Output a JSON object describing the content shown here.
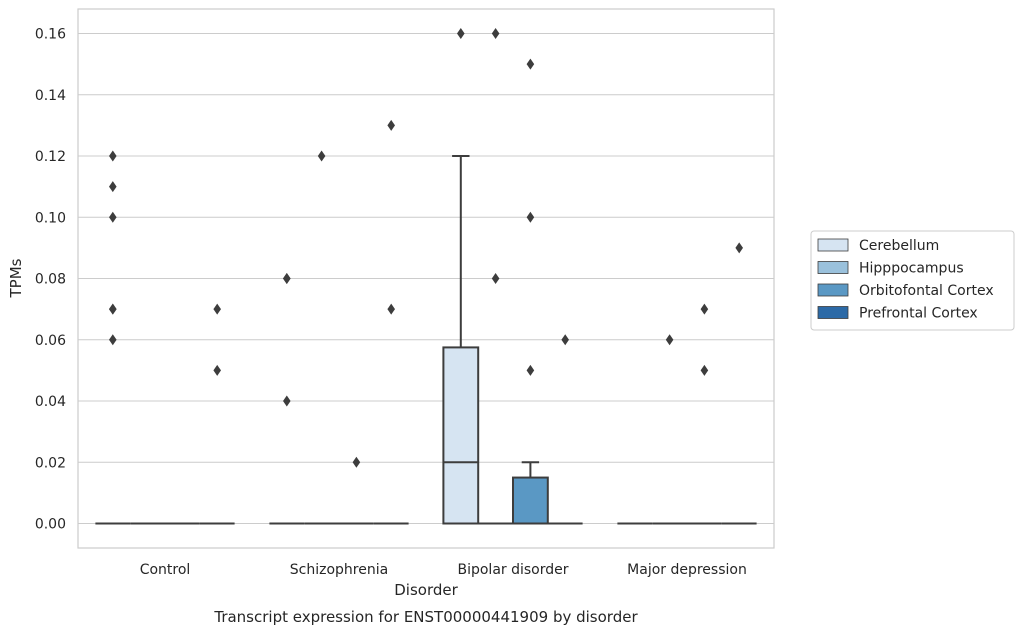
{
  "chart_data": {
    "type": "box",
    "xlabel": "Disorder",
    "ylabel": "TPMs",
    "caption": "Transcript expression for ENST00000441909 by disorder",
    "ylim": [
      -0.008,
      0.168
    ],
    "yticks": [
      "0.00",
      "0.02",
      "0.04",
      "0.06",
      "0.08",
      "0.10",
      "0.12",
      "0.14",
      "0.16"
    ],
    "ytick_values": [
      0,
      0.02,
      0.04,
      0.06,
      0.08,
      0.1,
      0.12,
      0.14,
      0.16
    ],
    "grid": "horizontal",
    "legend_position": "right",
    "categories": [
      "Control",
      "Schizophrenia",
      "Bipolar disorder",
      "Major depression"
    ],
    "series": [
      {
        "name": "Cerebellum",
        "color": "#d6e4f2",
        "boxes": [
          {
            "q1": 0,
            "median": 0,
            "q3": 0,
            "whisker_low": 0,
            "whisker_high": 0,
            "outliers": [
              0.06,
              0.07,
              0.07,
              0.1,
              0.11,
              0.12
            ]
          },
          {
            "q1": 0,
            "median": 0,
            "q3": 0,
            "whisker_low": 0,
            "whisker_high": 0,
            "outliers": [
              0.04,
              0.08,
              0.08
            ]
          },
          {
            "q1": 0,
            "median": 0.02,
            "q3": 0.0575,
            "whisker_low": 0,
            "whisker_high": 0.12,
            "outliers": [
              0.16
            ]
          },
          {
            "q1": 0,
            "median": 0,
            "q3": 0,
            "whisker_low": 0,
            "whisker_high": 0,
            "outliers": []
          }
        ]
      },
      {
        "name": "Hipppocampus",
        "color": "#9ac1dc",
        "boxes": [
          {
            "q1": 0,
            "median": 0,
            "q3": 0,
            "whisker_low": 0,
            "whisker_high": 0,
            "outliers": []
          },
          {
            "q1": 0,
            "median": 0,
            "q3": 0,
            "whisker_low": 0,
            "whisker_high": 0,
            "outliers": [
              0.12
            ]
          },
          {
            "q1": 0,
            "median": 0,
            "q3": 0,
            "whisker_low": 0,
            "whisker_high": 0,
            "outliers": [
              0.08,
              0.16
            ]
          },
          {
            "q1": 0,
            "median": 0,
            "q3": 0,
            "whisker_low": 0,
            "whisker_high": 0,
            "outliers": [
              0.06
            ]
          }
        ]
      },
      {
        "name": "Orbitofontal Cortex",
        "color": "#5a98c4",
        "boxes": [
          {
            "q1": 0,
            "median": 0,
            "q3": 0,
            "whisker_low": 0,
            "whisker_high": 0,
            "outliers": []
          },
          {
            "q1": 0,
            "median": 0,
            "q3": 0,
            "whisker_low": 0,
            "whisker_high": 0,
            "outliers": [
              0.02
            ]
          },
          {
            "q1": 0,
            "median": 0,
            "q3": 0.015,
            "whisker_low": 0,
            "whisker_high": 0.02,
            "outliers": [
              0.05,
              0.1,
              0.15
            ]
          },
          {
            "q1": 0,
            "median": 0,
            "q3": 0,
            "whisker_low": 0,
            "whisker_high": 0,
            "outliers": [
              0.05,
              0.07
            ]
          }
        ]
      },
      {
        "name": "Prefrontal Cortex",
        "color": "#2c6aa7",
        "boxes": [
          {
            "q1": 0,
            "median": 0,
            "q3": 0,
            "whisker_low": 0,
            "whisker_high": 0,
            "outliers": [
              0.05,
              0.07
            ]
          },
          {
            "q1": 0,
            "median": 0,
            "q3": 0,
            "whisker_low": 0,
            "whisker_high": 0,
            "outliers": [
              0.07,
              0.13
            ]
          },
          {
            "q1": 0,
            "median": 0,
            "q3": 0,
            "whisker_low": 0,
            "whisker_high": 0,
            "outliers": [
              0.06
            ]
          },
          {
            "q1": 0,
            "median": 0,
            "q3": 0,
            "whisker_low": 0,
            "whisker_high": 0,
            "outliers": [
              0.09
            ]
          }
        ]
      }
    ]
  }
}
